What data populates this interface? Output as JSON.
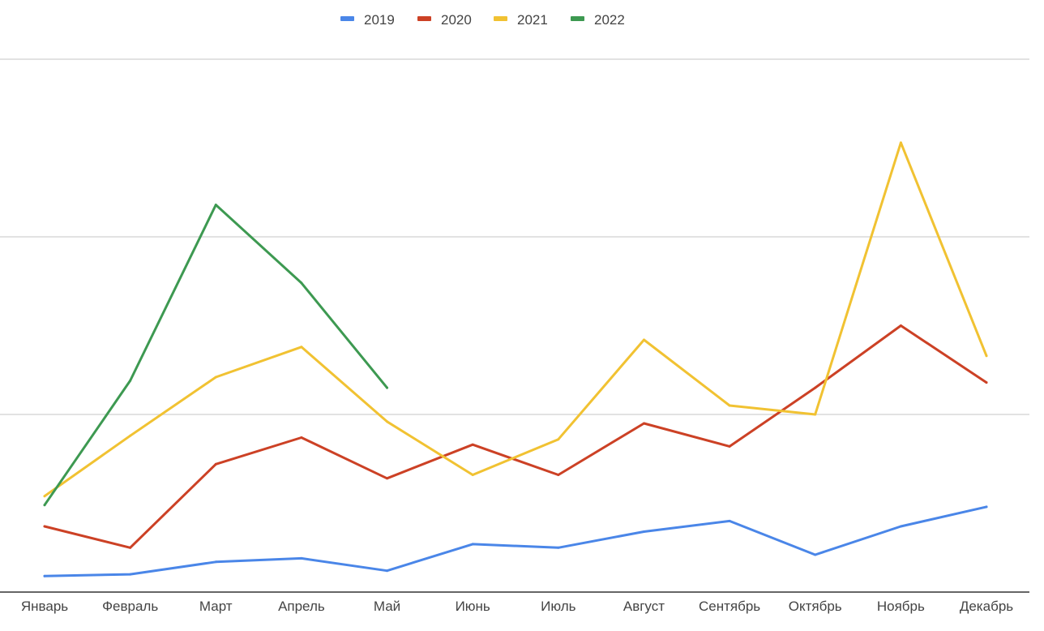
{
  "chart_data": {
    "type": "line",
    "categories": [
      "Январь",
      "Февраль",
      "Март",
      "Апрель",
      "Май",
      "Июнь",
      "Июль",
      "Август",
      "Сентябрь",
      "Октябрь",
      "Ноябрь",
      "Декабрь"
    ],
    "ylim": [
      0,
      3
    ],
    "y_gridlines": [
      1,
      2,
      3
    ],
    "grid": true,
    "legend_position": "top",
    "series": [
      {
        "name": "2019",
        "color": "#4a86e8",
        "values": [
          0.09,
          0.1,
          0.17,
          0.19,
          0.12,
          0.27,
          0.25,
          0.34,
          0.4,
          0.21,
          0.37,
          0.48
        ]
      },
      {
        "name": "2020",
        "color": "#cc4125",
        "values": [
          0.37,
          0.25,
          0.72,
          0.87,
          0.64,
          0.83,
          0.66,
          0.95,
          0.82,
          1.15,
          1.5,
          1.18
        ]
      },
      {
        "name": "2021",
        "color": "#f1c232",
        "values": [
          0.54,
          0.88,
          1.21,
          1.38,
          0.96,
          0.66,
          0.86,
          1.42,
          1.05,
          1.0,
          2.53,
          1.33
        ]
      },
      {
        "name": "2022",
        "color": "#3d9951",
        "values": [
          0.49,
          1.19,
          2.18,
          1.74,
          1.15,
          null,
          null,
          null,
          null,
          null,
          null,
          null
        ]
      }
    ]
  }
}
